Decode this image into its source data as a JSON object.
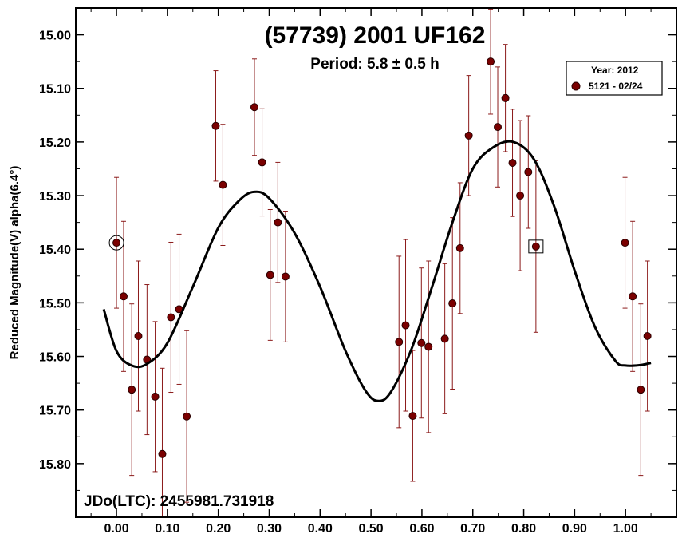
{
  "chart_data": {
    "type": "scatter",
    "title": "(57739) 2001 UF162",
    "subtitle": "Period: 5.8 ± 0.5 h",
    "ylabel": "Reduced Magnitude(V) alpha(6.4°)",
    "xlabel": "",
    "jd_label": "JDo(LTC): 2455981.731918",
    "xlim": [
      -0.08,
      1.1
    ],
    "ylim": [
      15.9,
      14.95
    ],
    "y_inverted": true,
    "x_ticks": [
      0.0,
      0.1,
      0.2,
      0.3,
      0.4,
      0.5,
      0.6,
      0.7,
      0.8,
      0.9,
      1.0
    ],
    "x_tick_labels": [
      "0.00",
      "0.10",
      "0.20",
      "0.30",
      "0.40",
      "0.50",
      "0.60",
      "0.70",
      "0.80",
      "0.90",
      "1.00"
    ],
    "y_ticks": [
      15.0,
      15.1,
      15.2,
      15.3,
      15.4,
      15.5,
      15.6,
      15.7,
      15.8
    ],
    "y_tick_labels": [
      "15.00",
      "15.10",
      "15.20",
      "15.30",
      "15.40",
      "15.50",
      "15.60",
      "15.70",
      "15.80"
    ],
    "grid": false,
    "legend": {
      "placement": "top-right",
      "title": "Year: 2012",
      "entries": [
        "5121 - 02/24"
      ]
    },
    "colors": {
      "points": "#7a0000",
      "errorbars": "#8b1a1a",
      "fit": "#000000",
      "frame": "#000000"
    },
    "series": [
      {
        "name": "5121 - 02/24",
        "points": [
          {
            "x": 0.0,
            "y": 15.388,
            "err": 0.122
          },
          {
            "x": 0.014,
            "y": 15.488,
            "err": 0.14
          },
          {
            "x": 0.03,
            "y": 15.662,
            "err": 0.16
          },
          {
            "x": 0.043,
            "y": 15.562,
            "err": 0.14
          },
          {
            "x": 0.06,
            "y": 15.606,
            "err": 0.14
          },
          {
            "x": 0.076,
            "y": 15.675,
            "err": 0.14
          },
          {
            "x": 0.09,
            "y": 15.782,
            "err": 0.16
          },
          {
            "x": 0.107,
            "y": 15.527,
            "err": 0.14
          },
          {
            "x": 0.123,
            "y": 15.512,
            "err": 0.14
          },
          {
            "x": 0.138,
            "y": 15.712,
            "err": 0.16
          },
          {
            "x": 0.195,
            "y": 15.17,
            "err": 0.103
          },
          {
            "x": 0.209,
            "y": 15.28,
            "err": 0.113
          },
          {
            "x": 0.271,
            "y": 15.135,
            "err": 0.09
          },
          {
            "x": 0.286,
            "y": 15.238,
            "err": 0.1
          },
          {
            "x": 0.302,
            "y": 15.448,
            "err": 0.122
          },
          {
            "x": 0.317,
            "y": 15.35,
            "err": 0.112
          },
          {
            "x": 0.332,
            "y": 15.451,
            "err": 0.122
          },
          {
            "x": 0.555,
            "y": 15.573,
            "err": 0.16
          },
          {
            "x": 0.568,
            "y": 15.542,
            "err": 0.16
          },
          {
            "x": 0.582,
            "y": 15.711,
            "err": 0.122
          },
          {
            "x": 0.599,
            "y": 15.575,
            "err": 0.14
          },
          {
            "x": 0.613,
            "y": 15.582,
            "err": 0.16
          },
          {
            "x": 0.645,
            "y": 15.567,
            "err": 0.14
          },
          {
            "x": 0.66,
            "y": 15.501,
            "err": 0.16
          },
          {
            "x": 0.675,
            "y": 15.398,
            "err": 0.122
          },
          {
            "x": 0.692,
            "y": 15.188,
            "err": 0.112
          },
          {
            "x": 0.735,
            "y": 15.05,
            "err": 0.098
          },
          {
            "x": 0.749,
            "y": 15.172,
            "err": 0.112
          },
          {
            "x": 0.764,
            "y": 15.118,
            "err": 0.1
          },
          {
            "x": 0.778,
            "y": 15.239,
            "err": 0.1
          },
          {
            "x": 0.793,
            "y": 15.3,
            "err": 0.14
          },
          {
            "x": 0.809,
            "y": 15.256,
            "err": 0.105
          },
          {
            "x": 0.824,
            "y": 15.395,
            "err": 0.16
          },
          {
            "x": 0.999,
            "y": 15.388,
            "err": 0.122
          },
          {
            "x": 1.014,
            "y": 15.488,
            "err": 0.14
          },
          {
            "x": 1.03,
            "y": 15.662,
            "err": 0.16
          },
          {
            "x": 1.043,
            "y": 15.562,
            "err": 0.14
          }
        ]
      }
    ],
    "fit_curve": {
      "x": [
        -0.025,
        0.0,
        0.03,
        0.06,
        0.1,
        0.15,
        0.2,
        0.24,
        0.27,
        0.3,
        0.35,
        0.4,
        0.45,
        0.49,
        0.515,
        0.54,
        0.58,
        0.62,
        0.66,
        0.7,
        0.74,
        0.78,
        0.82,
        0.86,
        0.9,
        0.94,
        0.98,
        1.0,
        1.03,
        1.05
      ],
      "y": [
        15.512,
        15.59,
        15.617,
        15.614,
        15.575,
        15.47,
        15.36,
        15.31,
        15.293,
        15.305,
        15.37,
        15.47,
        15.59,
        15.665,
        15.683,
        15.665,
        15.585,
        15.47,
        15.35,
        15.25,
        15.21,
        15.2,
        15.232,
        15.32,
        15.44,
        15.545,
        15.608,
        15.617,
        15.616,
        15.612
      ]
    },
    "highlighted_points": [
      {
        "x": 0.0,
        "y": 15.388,
        "marker": "circle"
      },
      {
        "x": 0.824,
        "y": 15.395,
        "marker": "square"
      }
    ]
  }
}
